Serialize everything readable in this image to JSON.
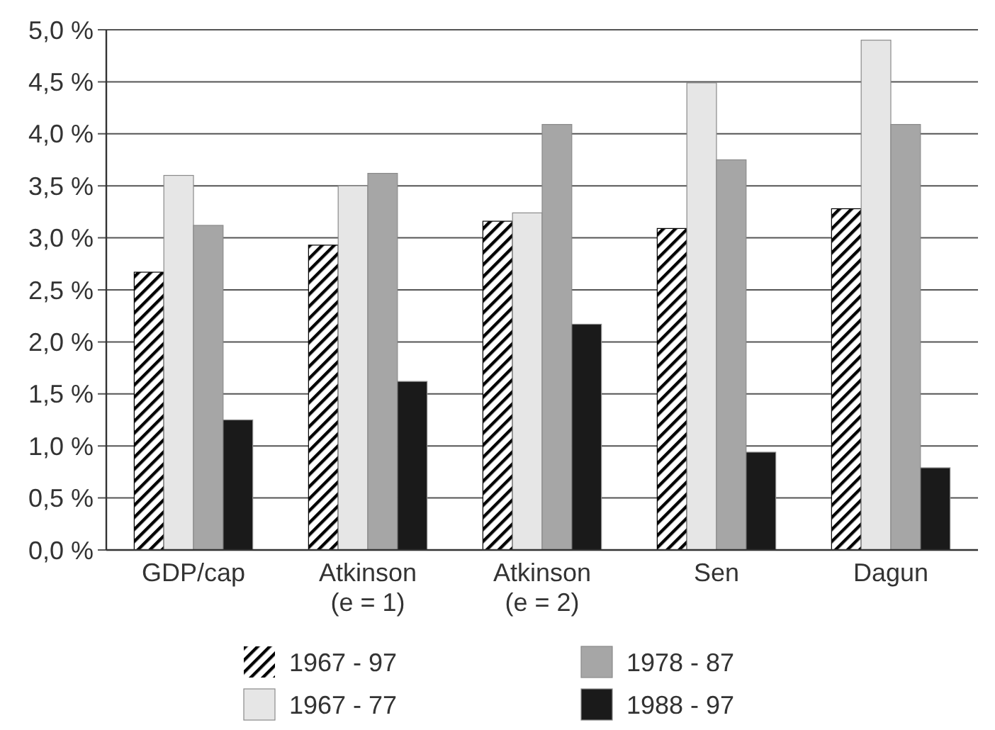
{
  "chart_data": {
    "type": "bar",
    "categories": [
      "GDP/cap",
      "Atkinson (e = 1)",
      "Atkinson (e = 2)",
      "Sen",
      "Dagun"
    ],
    "series": [
      {
        "name": "1967 - 97",
        "color": "#000000",
        "values": [
          2.67,
          2.93,
          3.16,
          3.09,
          3.28
        ]
      },
      {
        "name": "1967 - 77",
        "color": "#e6e6e6",
        "values": [
          3.6,
          3.5,
          3.24,
          4.49,
          4.9
        ]
      },
      {
        "name": "1978 - 87",
        "color": "#a6a6a6",
        "values": [
          3.12,
          3.62,
          4.09,
          3.75,
          4.09
        ]
      },
      {
        "name": "1988 - 97",
        "color": "#1a1a1a",
        "values": [
          1.25,
          1.62,
          2.17,
          0.94,
          0.79
        ]
      }
    ],
    "ylim": [
      0,
      5
    ],
    "yticks": [
      {
        "value": 0,
        "label": "0,0 %"
      },
      {
        "value": 0.5,
        "label": "0,5 %"
      },
      {
        "value": 1,
        "label": "1,0 %"
      },
      {
        "value": 1.5,
        "label": "1,5 %"
      },
      {
        "value": 2,
        "label": "2,0 %"
      },
      {
        "value": 2.5,
        "label": "2,5 %"
      },
      {
        "value": 3,
        "label": "3,0 %"
      },
      {
        "value": 3.5,
        "label": "3,5 %"
      },
      {
        "value": 4,
        "label": "4,0 %"
      },
      {
        "value": 4.5,
        "label": "4,5 %"
      },
      {
        "value": 5,
        "label": "5,0 %"
      }
    ],
    "grid": "y",
    "legend": "bottom"
  }
}
